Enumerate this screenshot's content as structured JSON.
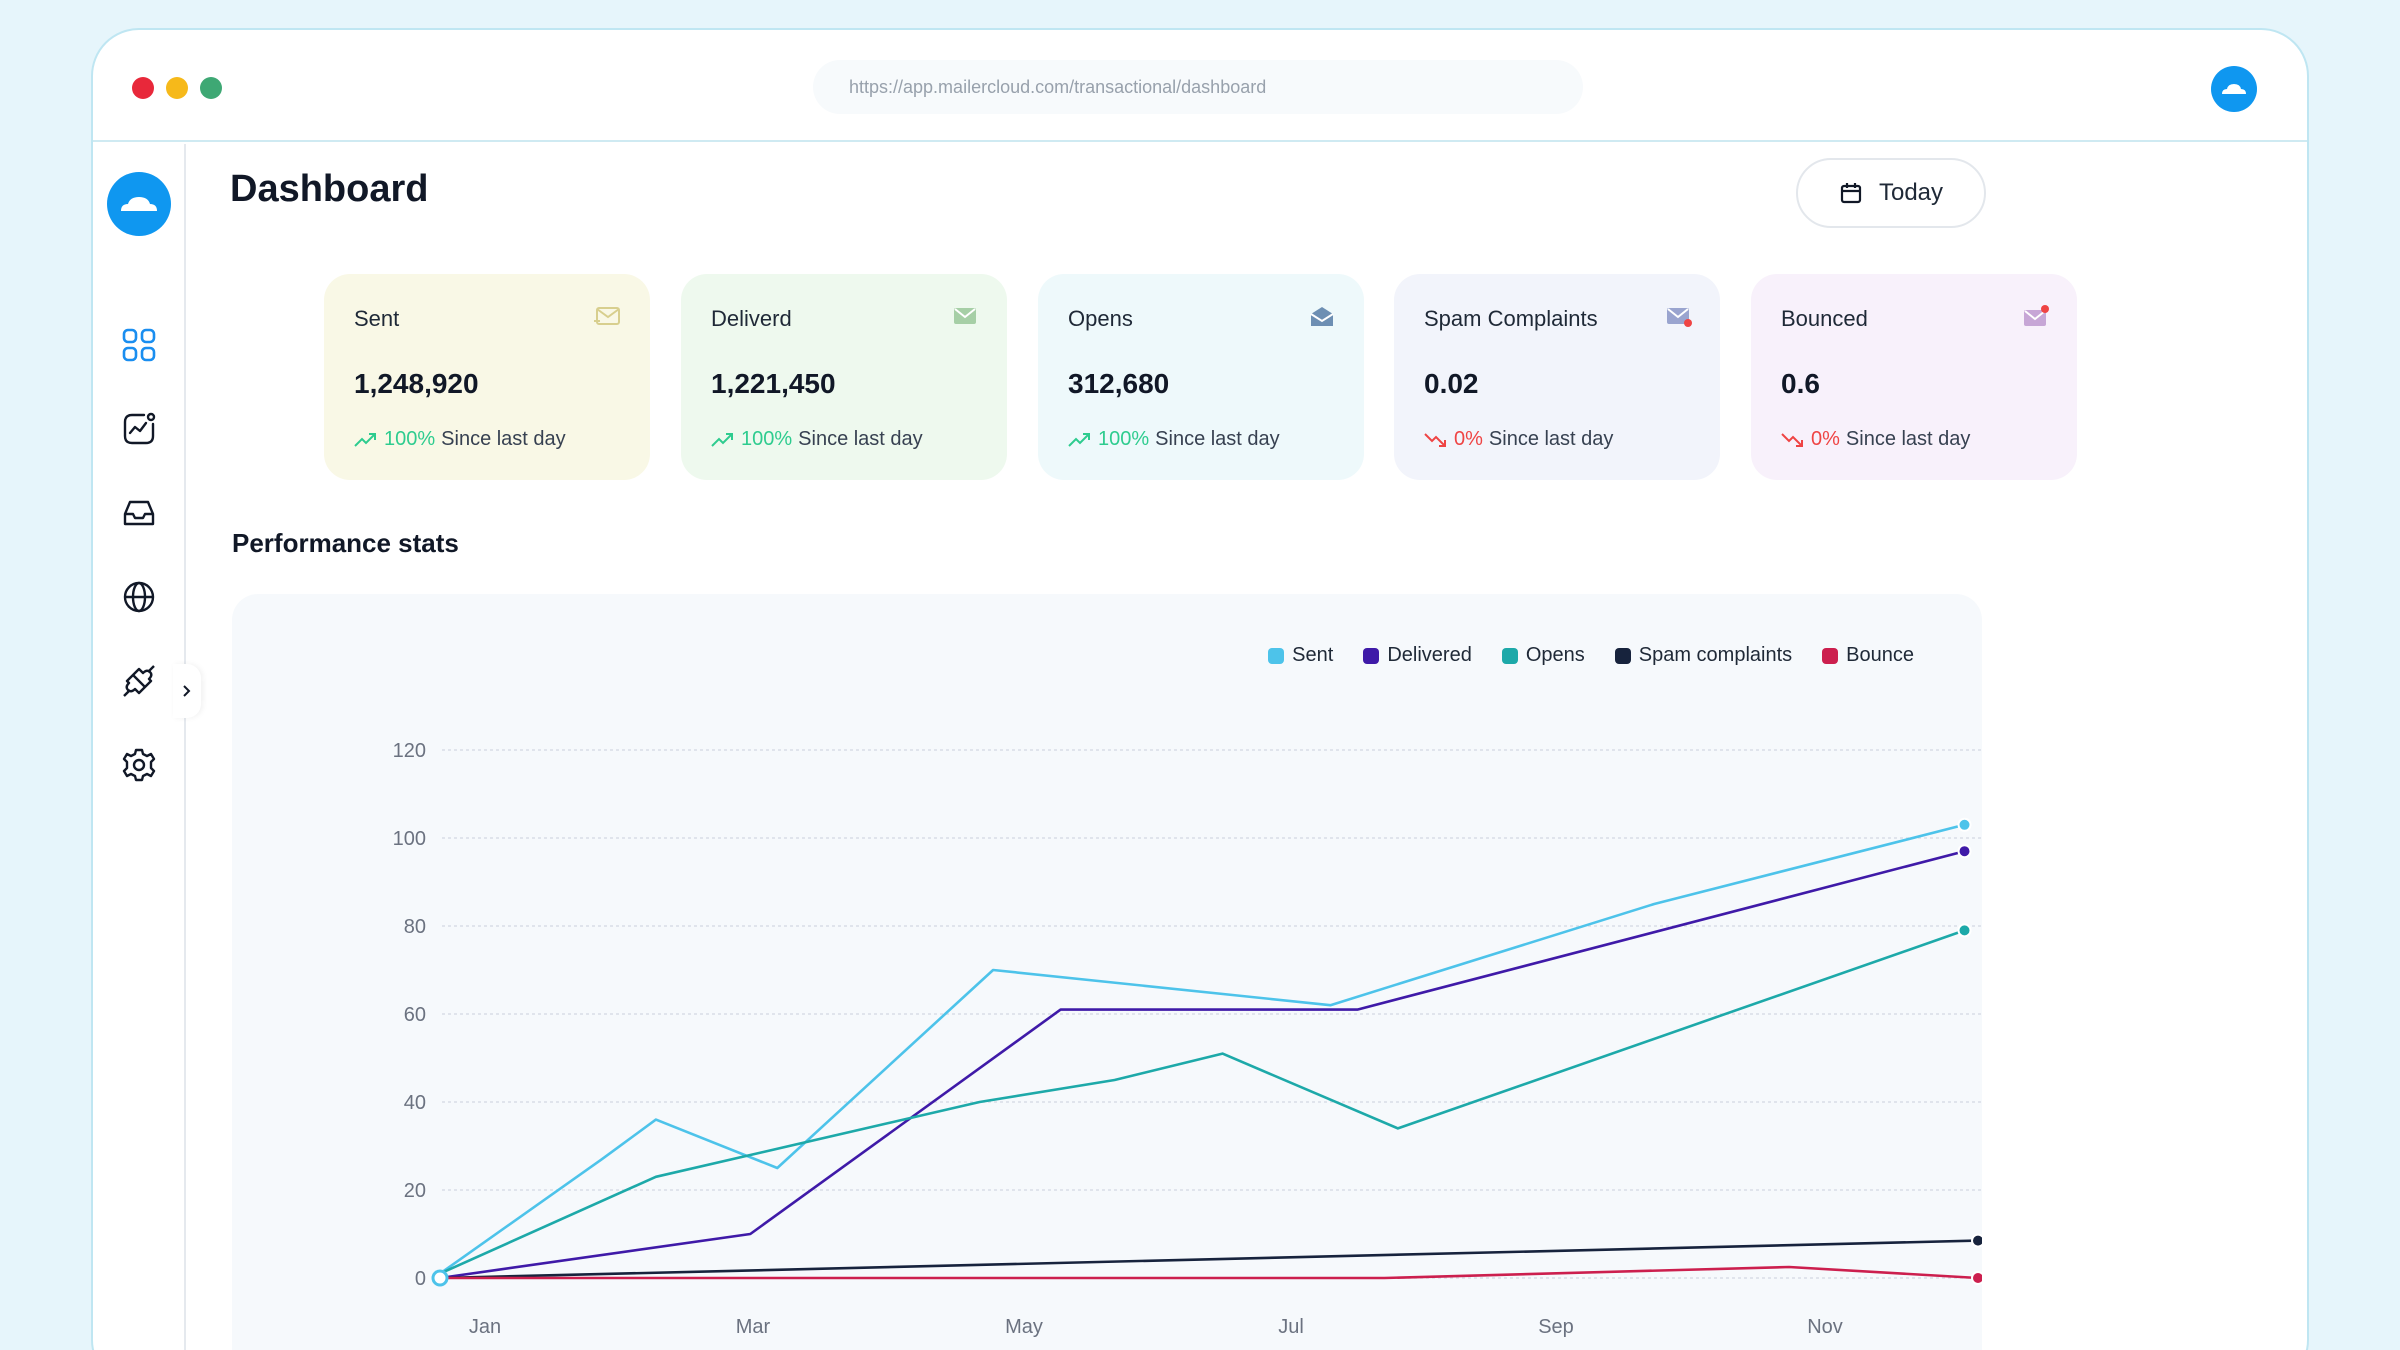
{
  "browser": {
    "url": "https://app.mailercloud.com/transactional/dashboard"
  },
  "sidebar": {
    "items": [
      {
        "icon": "dashboard-grid-icon"
      },
      {
        "icon": "analytics-chart-icon"
      },
      {
        "icon": "inbox-icon"
      },
      {
        "icon": "globe-icon"
      },
      {
        "icon": "integration-puzzle-icon"
      },
      {
        "icon": "settings-gear-icon"
      }
    ]
  },
  "page": {
    "title": "Dashboard",
    "date_button": "Today"
  },
  "cards": [
    {
      "title": "Sent",
      "value": "1,248,920",
      "pct": "100%",
      "trend": "up",
      "since": "Since last day",
      "bg": "#f9f8e6",
      "icon": "mail-sent-icon",
      "icon_color": "#d8cf8e"
    },
    {
      "title": "Deliverd",
      "value": "1,221,450",
      "pct": "100%",
      "trend": "up",
      "since": "Since last day",
      "bg": "#eef9ee",
      "icon": "mail-delivered-icon",
      "icon_color": "#a6cfa6"
    },
    {
      "title": "Opens",
      "value": "312,680",
      "pct": "100%",
      "trend": "up",
      "since": "Since last day",
      "bg": "#eef9fb",
      "icon": "mail-open-icon",
      "icon_color": "#6d8fb3"
    },
    {
      "title": "Spam Complaints",
      "value": "0.02",
      "pct": "0%",
      "trend": "down",
      "since": "Since last day",
      "bg": "#f2f4fb",
      "icon": "mail-spam-icon",
      "icon_color": "#9aa4cf"
    },
    {
      "title": "Bounced",
      "value": "0.6",
      "pct": "0%",
      "trend": "down",
      "since": "Since last day",
      "bg": "#f8f1fb",
      "icon": "mail-bounce-icon",
      "icon_color": "#c7a6d6"
    }
  ],
  "performance": {
    "title": "Performance stats"
  },
  "chart_data": {
    "type": "line",
    "title": "",
    "xlabel": "",
    "ylabel": "",
    "x_ticks": [
      "Jan",
      "Mar",
      "May",
      "Jul",
      "Sep",
      "Nov"
    ],
    "y_ticks": [
      0,
      20,
      40,
      60,
      80,
      100,
      120
    ],
    "ylim": [
      0,
      120
    ],
    "xlim": [
      0,
      11.4
    ],
    "grid": true,
    "legend": "top-right",
    "series": [
      {
        "name": "Sent",
        "color": "#4dc3ea",
        "points": [
          [
            0,
            1
          ],
          [
            1.2,
            27
          ],
          [
            1.6,
            36
          ],
          [
            2.5,
            25
          ],
          [
            4.1,
            70
          ],
          [
            6.6,
            62
          ],
          [
            9.0,
            85
          ],
          [
            11.3,
            103
          ]
        ]
      },
      {
        "name": "Delivered",
        "color": "#3f1aa8",
        "points": [
          [
            0,
            0
          ],
          [
            2.3,
            10
          ],
          [
            4.6,
            61
          ],
          [
            6.8,
            61
          ],
          [
            11.3,
            97
          ]
        ]
      },
      {
        "name": "Opens",
        "color": "#1da9a9",
        "points": [
          [
            0,
            1
          ],
          [
            1.6,
            23
          ],
          [
            4.0,
            40
          ],
          [
            5.0,
            45
          ],
          [
            5.8,
            51
          ],
          [
            7.1,
            34
          ],
          [
            11.3,
            79
          ]
        ]
      },
      {
        "name": "Spam complaints",
        "color": "#17233d",
        "points": [
          [
            0,
            0
          ],
          [
            11.4,
            8.5
          ]
        ]
      },
      {
        "name": "Bounce",
        "color": "#cc1f4e",
        "points": [
          [
            0,
            0
          ],
          [
            3.6,
            0
          ],
          [
            7.0,
            0
          ],
          [
            10.0,
            2.5
          ],
          [
            11.4,
            0
          ]
        ]
      }
    ]
  }
}
